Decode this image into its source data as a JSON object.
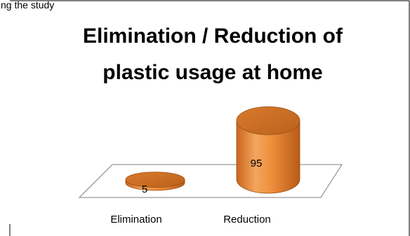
{
  "caption": "ng the study",
  "chart_data": {
    "type": "bar",
    "style": "3d-cylinder",
    "title": "Elimination / Reduction of plastic usage at home",
    "title_lines": [
      "Elimination / Reduction of",
      "plastic usage at home"
    ],
    "categories": [
      "Elimination",
      "Reduction"
    ],
    "values": [
      5,
      95
    ],
    "data_labels": [
      "5",
      "95"
    ],
    "ylim": [
      0,
      100
    ],
    "grid": false,
    "legend": "none",
    "colors": {
      "bar_body": "#E8873A",
      "bar_top": "#C86A20",
      "bar_edge": "#9A4E12",
      "floor_stroke": "#7f7f7f",
      "frame_stroke": "#000000"
    }
  }
}
